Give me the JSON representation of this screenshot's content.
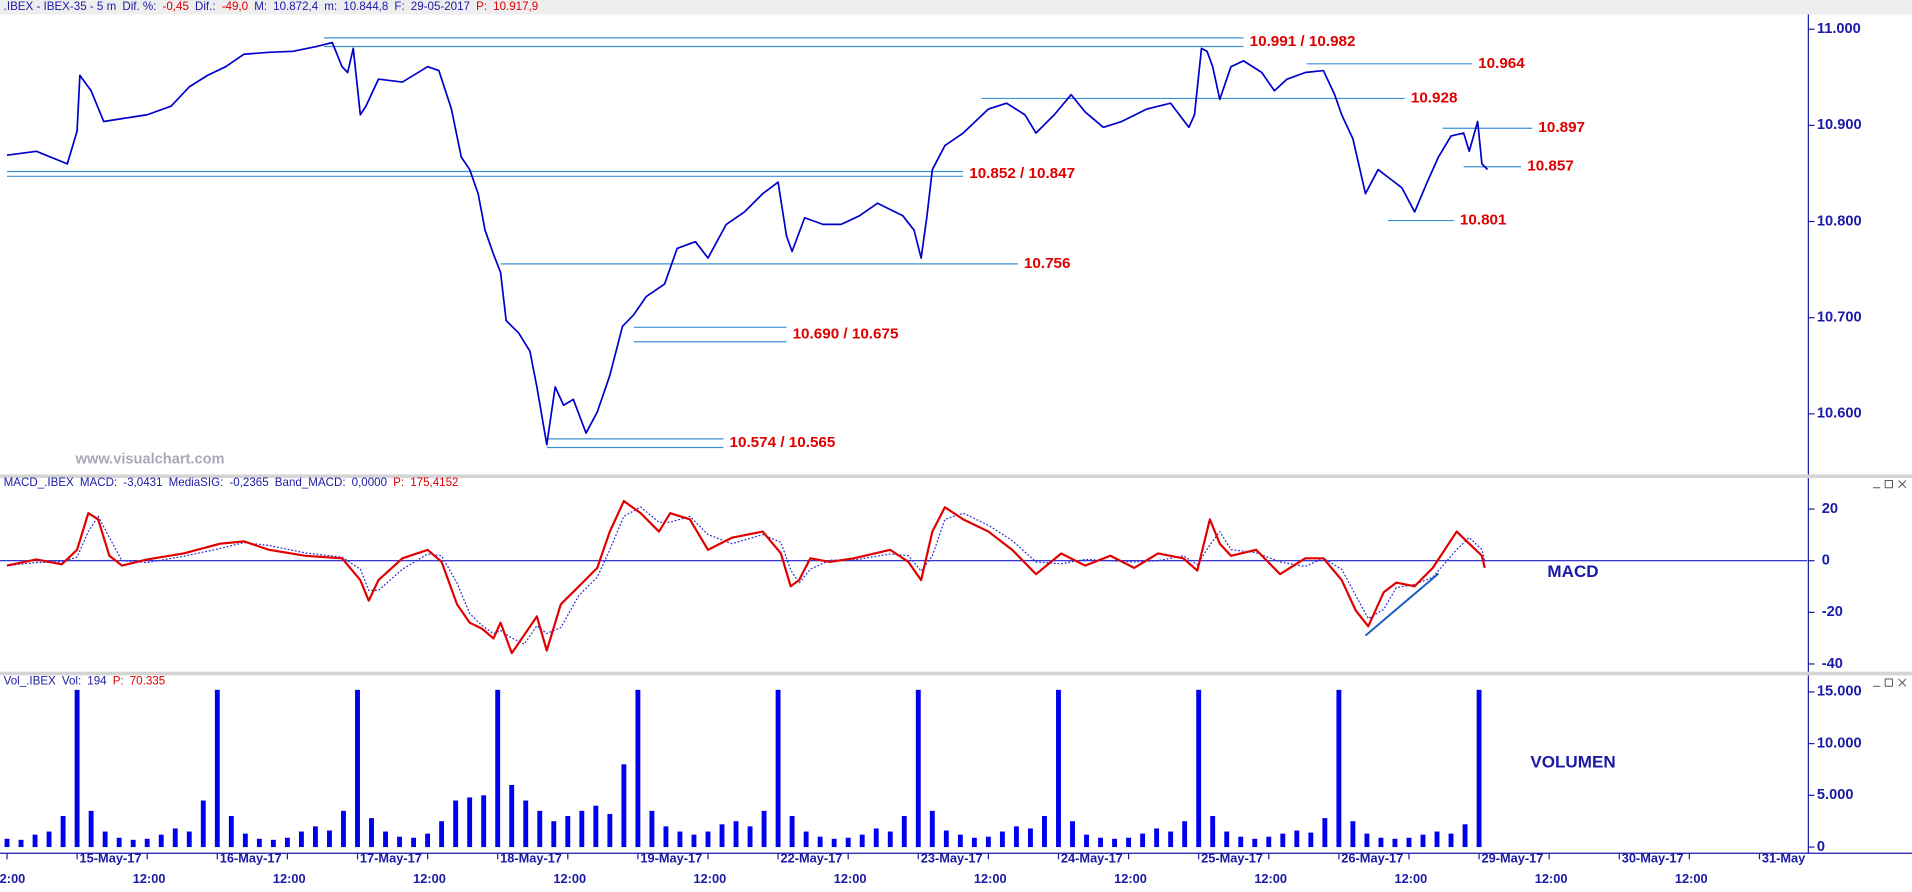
{
  "chart_data": [
    {
      "type": "line",
      "header": [
        {
          "text": ".IBEX - IBEX-35 - 5 m",
          "color": "#1a1aa6"
        },
        {
          "text": "Dif. %:",
          "color": "#1a1aa6"
        },
        {
          "text": "-0,45",
          "color": "#dd0000"
        },
        {
          "text": "Dif.:",
          "color": "#1a1aa6"
        },
        {
          "text": "-49,0",
          "color": "#dd0000"
        },
        {
          "text": "M:",
          "color": "#1a1aa6"
        },
        {
          "text": "10.872,4",
          "color": "#1a1aa6"
        },
        {
          "text": "m:",
          "color": "#1a1aa6"
        },
        {
          "text": "10.844,8",
          "color": "#1a1aa6"
        },
        {
          "text": "F:",
          "color": "#1a1aa6"
        },
        {
          "text": "29-05-2017",
          "color": "#1a1aa6"
        },
        {
          "text": "P:",
          "color": "#dd0000"
        },
        {
          "text": "10.917,9",
          "color": "#dd0000"
        }
      ],
      "watermark": "www.visualchart.com",
      "color": "#0000cc",
      "xlim": [
        -0.55,
        12.34
      ],
      "ylim": [
        10537,
        11014
      ],
      "yticks": [
        {
          "value": 10600,
          "label": "10.600"
        },
        {
          "value": 10700,
          "label": "10.700"
        },
        {
          "value": 10800,
          "label": "10.800"
        },
        {
          "value": 10900,
          "label": "10.900"
        },
        {
          "value": 11000,
          "label": "11.000"
        }
      ],
      "x": [
        -0.5,
        -0.29,
        -0.07,
        0,
        0.02,
        0.1,
        0.19,
        0.32,
        0.5,
        0.67,
        0.8,
        0.93,
        1.06,
        1.19,
        1.37,
        1.54,
        1.71,
        1.82,
        1.89,
        1.93,
        1.97,
        2.02,
        2.06,
        2.15,
        2.32,
        2.5,
        2.58,
        2.67,
        2.74,
        2.8,
        2.86,
        2.91,
        2.97,
        3.02,
        3.06,
        3.15,
        3.23,
        3.28,
        3.35,
        3.41,
        3.47,
        3.54,
        3.63,
        3.71,
        3.8,
        3.89,
        3.97,
        4.06,
        4.19,
        4.28,
        4.41,
        4.5,
        4.63,
        4.76,
        4.89,
        5,
        5.06,
        5.1,
        5.19,
        5.32,
        5.45,
        5.58,
        5.71,
        5.89,
        5.97,
        6.02,
        6.06,
        6.1,
        6.19,
        6.32,
        6.5,
        6.63,
        6.76,
        6.84,
        6.97,
        7.09,
        7.19,
        7.32,
        7.45,
        7.63,
        7.8,
        7.93,
        7.97,
        8.02,
        8.06,
        8.1,
        8.15,
        8.23,
        8.32,
        8.45,
        8.54,
        8.63,
        8.76,
        8.89,
        8.97,
        9.02,
        9.1,
        9.19,
        9.28,
        9.37,
        9.45,
        9.54,
        9.63,
        9.71,
        9.8,
        9.89,
        9.93,
        9.99,
        10.02,
        10.06
      ],
      "values": [
        10869,
        10873,
        10860,
        10894,
        10952,
        10936,
        10904,
        10907,
        10911,
        10920,
        10940,
        10952,
        10961,
        10974,
        10976,
        10977,
        10982,
        10986,
        10961,
        10955,
        10980,
        10911,
        10920,
        10948,
        10945,
        10961,
        10957,
        10917,
        10867,
        10854,
        10829,
        10791,
        10766,
        10747,
        10697,
        10684,
        10665,
        10628,
        10568,
        10628,
        10609,
        10615,
        10580,
        10602,
        10640,
        10691,
        10703,
        10722,
        10735,
        10772,
        10779,
        10762,
        10797,
        10810,
        10829,
        10841,
        10785,
        10769,
        10804,
        10797,
        10797,
        10806,
        10819,
        10806,
        10791,
        10762,
        10804,
        10854,
        10879,
        10892,
        10917,
        10923,
        10911,
        10892,
        10911,
        10932,
        10914,
        10898,
        10904,
        10917,
        10923,
        10898,
        10911,
        10980,
        10977,
        10961,
        10927,
        10961,
        10967,
        10955,
        10936,
        10948,
        10955,
        10957,
        10932,
        10911,
        10886,
        10829,
        10854,
        10844,
        10835,
        10810,
        10841,
        10867,
        10889,
        10892,
        10873,
        10904,
        10860,
        10854
      ],
      "level_color": "#3d8fd6",
      "levels": [
        {
          "label": "10.991 / 10.982",
          "values": [
            10991,
            10982
          ],
          "from": 1.76,
          "to": 8.32
        },
        {
          "label": "10.964",
          "values": [
            10964
          ],
          "from": 8.77,
          "to": 9.95
        },
        {
          "label": "10.928",
          "values": [
            10928
          ],
          "from": 6.45,
          "to": 9.47
        },
        {
          "label": "10.897",
          "values": [
            10897
          ],
          "from": 9.74,
          "to": 10.38
        },
        {
          "label": "10.852 / 10.847",
          "values": [
            10852,
            10847
          ],
          "from": -0.5,
          "to": 6.32
        },
        {
          "label": "10.857",
          "values": [
            10857
          ],
          "from": 9.89,
          "to": 10.3
        },
        {
          "label": "10.801",
          "values": [
            10801
          ],
          "from": 9.35,
          "to": 9.82
        },
        {
          "label": "10.756",
          "values": [
            10756
          ],
          "from": 3.02,
          "to": 6.71
        },
        {
          "label": "10.690 / 10.675",
          "values": [
            10690,
            10675
          ],
          "from": 3.97,
          "to": 5.06
        },
        {
          "label": "10.574 / 10.565",
          "values": [
            10574,
            10565
          ],
          "from": 3.35,
          "to": 4.61
        }
      ]
    },
    {
      "type": "line",
      "header": [
        {
          "text": "MACD_.IBEX",
          "color": "#1a1aa6"
        },
        {
          "text": "MACD:",
          "color": "#1a1aa6"
        },
        {
          "text": "-3,0431",
          "color": "#1a1aa6"
        },
        {
          "text": "MediaSIG:",
          "color": "#1a1aa6"
        },
        {
          "text": "-0,2365",
          "color": "#1a1aa6"
        },
        {
          "text": "Band_MACD:",
          "color": "#1a1aa6"
        },
        {
          "text": "0,0000",
          "color": "#1a1aa6"
        },
        {
          "text": "P:",
          "color": "#dd0000"
        },
        {
          "text": "175,4152",
          "color": "#dd0000"
        }
      ],
      "label": "MACD",
      "xlim": [
        -0.55,
        12.34
      ],
      "ylim": [
        -43,
        32
      ],
      "yticks": [
        -40,
        -20,
        0,
        20
      ],
      "band": 0,
      "band_color": "#1a1acc",
      "x": [
        -0.5,
        -0.29,
        -0.11,
        0,
        0.08,
        0.15,
        0.23,
        0.32,
        0.5,
        0.76,
        1.02,
        1.19,
        1.37,
        1.63,
        1.89,
        2.02,
        2.08,
        2.15,
        2.32,
        2.5,
        2.6,
        2.71,
        2.8,
        2.89,
        2.97,
        3.02,
        3.1,
        3.19,
        3.28,
        3.35,
        3.45,
        3.58,
        3.71,
        3.8,
        3.9,
        4.02,
        4.15,
        4.23,
        4.37,
        4.5,
        4.67,
        4.89,
        5.02,
        5.09,
        5.15,
        5.23,
        5.37,
        5.54,
        5.8,
        5.93,
        6.02,
        6.1,
        6.19,
        6.32,
        6.5,
        6.67,
        6.84,
        7.02,
        7.19,
        7.37,
        7.54,
        7.71,
        7.89,
        7.99,
        8.08,
        8.15,
        8.23,
        8.41,
        8.58,
        8.76,
        8.89,
        9.02,
        9.12,
        9.21,
        9.32,
        9.41,
        9.54,
        9.67,
        9.84,
        9.93,
        10.02,
        10.04
      ],
      "series": [
        {
          "color": "#e00000",
          "style": "solid",
          "values": [
            -1.9,
            0.5,
            -1.4,
            4.2,
            18.4,
            16,
            1.9,
            -1.9,
            0.5,
            2.8,
            6.6,
            7.5,
            4.2,
            1.9,
            0.9,
            -7.5,
            -15.5,
            -7.5,
            0.9,
            4.2,
            -0.5,
            -16.9,
            -24,
            -26.4,
            -30.1,
            -24,
            -35.8,
            -28.7,
            -21.6,
            -34.8,
            -16.9,
            -9.9,
            -2.8,
            11.3,
            23.1,
            18.4,
            11.3,
            18.4,
            16,
            4.2,
            8.9,
            11.3,
            2.8,
            -9.9,
            -7.5,
            0.9,
            -0.5,
            0.9,
            4.2,
            -0.5,
            -7.5,
            11.3,
            20.7,
            16,
            11.3,
            4.2,
            -5.2,
            2.8,
            -1.9,
            1.9,
            -2.8,
            2.8,
            0.9,
            -3.8,
            16,
            6.6,
            1.9,
            4.2,
            -5.2,
            0.9,
            0.9,
            -7.5,
            -19.3,
            -25.4,
            -12.2,
            -8.5,
            -9.9,
            -2.8,
            11.3,
            6.6,
            1.9,
            -2.8
          ]
        },
        {
          "color": "#2a2ad0",
          "style": "dotted",
          "values": [
            -1.9,
            -0.7,
            -0.5,
            1.4,
            11.3,
            17.2,
            9,
            0,
            -0.7,
            1.7,
            4.7,
            7,
            5.9,
            3,
            1.4,
            -3.3,
            -11.5,
            -11.5,
            -3.3,
            2.6,
            1.9,
            -8.7,
            -20.5,
            -25.2,
            -28.3,
            -27,
            -29.9,
            -32.3,
            -25.2,
            -28.2,
            -25.9,
            -13.4,
            -6.4,
            4.3,
            17.2,
            20.8,
            14.9,
            14.9,
            17.2,
            10.1,
            6.6,
            10.1,
            7.1,
            -3.6,
            -8.7,
            -3.3,
            0.2,
            0.2,
            2.6,
            1.9,
            -4,
            1.9,
            16,
            18.4,
            13.7,
            7.8,
            -0.5,
            -1.2,
            0.5,
            0,
            -0.5,
            0,
            1.9,
            -1.5,
            6.1,
            11.3,
            4.3,
            3.1,
            -0.5,
            -2.2,
            0.9,
            -3.3,
            -13.4,
            -22.4,
            -18.8,
            -10.4,
            -9.2,
            -6.4,
            4.3,
            9,
            4.3,
            -0.5
          ]
        }
      ],
      "trendline": {
        "x": [
          9.19,
          9.71
        ],
        "y": [
          -29,
          -5
        ],
        "color": "#1a5fc0"
      }
    },
    {
      "type": "bar",
      "header": [
        {
          "text": "Vol_.IBEX",
          "color": "#1a1aa6"
        },
        {
          "text": "Vol:",
          "color": "#1a1aa6"
        },
        {
          "text": "194",
          "color": "#1a1aa6"
        },
        {
          "text": "P:",
          "color": "#dd0000"
        },
        {
          "text": "70.335",
          "color": "#dd0000"
        }
      ],
      "label": "VOLUMEN",
      "color": "#0000ee",
      "xlim": [
        -0.55,
        12.34
      ],
      "ylim": [
        -600,
        16600
      ],
      "yticks": [
        0,
        {
          "value": 5000,
          "label": "5.000"
        },
        {
          "value": 10000,
          "label": "10.000"
        },
        {
          "value": 15000,
          "label": "15.000"
        }
      ],
      "xticks": [
        {
          "value": -0.5,
          "label": "2:00"
        },
        {
          "value": 0,
          "label": "15-May-17"
        },
        {
          "value": 0.5,
          "label": "12:00"
        },
        {
          "value": 1,
          "label": "16-May-17"
        },
        {
          "value": 1.5,
          "label": "12:00"
        },
        {
          "value": 2,
          "label": "17-May-17"
        },
        {
          "value": 2.5,
          "label": "12:00"
        },
        {
          "value": 3,
          "label": "18-May-17"
        },
        {
          "value": 3.5,
          "label": "12:00"
        },
        {
          "value": 4,
          "label": "19-May-17"
        },
        {
          "value": 4.5,
          "label": "12:00"
        },
        {
          "value": 5,
          "label": "22-May-17"
        },
        {
          "value": 5.5,
          "label": "12:00"
        },
        {
          "value": 6,
          "label": "23-May-17"
        },
        {
          "value": 6.5,
          "label": "12:00"
        },
        {
          "value": 7,
          "label": "24-May-17"
        },
        {
          "value": 7.5,
          "label": "12:00"
        },
        {
          "value": 8,
          "label": "25-May-17"
        },
        {
          "value": 8.5,
          "label": "12:00"
        },
        {
          "value": 9,
          "label": "26-May-17"
        },
        {
          "value": 9.5,
          "label": "12:00"
        },
        {
          "value": 10,
          "label": "29-May-17"
        },
        {
          "value": 10.5,
          "label": "12:00"
        },
        {
          "value": 11,
          "label": "30-May-17"
        },
        {
          "value": 11.5,
          "label": "12:00"
        },
        {
          "value": 12,
          "label": "31-May"
        }
      ],
      "x": [
        -0.5,
        -0.4,
        -0.3,
        -0.2,
        -0.1,
        0,
        0.1,
        0.2,
        0.3,
        0.4,
        0.5,
        0.6,
        0.7,
        0.8,
        0.9,
        1,
        1.1,
        1.2,
        1.3,
        1.4,
        1.5,
        1.6,
        1.7,
        1.8,
        1.9,
        2,
        2.1,
        2.2,
        2.3,
        2.4,
        2.5,
        2.6,
        2.7,
        2.8,
        2.9,
        3,
        3.1,
        3.2,
        3.3,
        3.4,
        3.5,
        3.6,
        3.7,
        3.8,
        3.9,
        4,
        4.1,
        4.2,
        4.3,
        4.4,
        4.5,
        4.6,
        4.7,
        4.8,
        4.9,
        5,
        5.1,
        5.2,
        5.3,
        5.4,
        5.5,
        5.6,
        5.7,
        5.8,
        5.9,
        6,
        6.1,
        6.2,
        6.3,
        6.4,
        6.5,
        6.6,
        6.7,
        6.8,
        6.9,
        7,
        7.1,
        7.2,
        7.3,
        7.4,
        7.5,
        7.6,
        7.7,
        7.8,
        7.9,
        8,
        8.1,
        8.2,
        8.3,
        8.4,
        8.5,
        8.6,
        8.7,
        8.8,
        8.9,
        9,
        9.1,
        9.2,
        9.3,
        9.4,
        9.5,
        9.6,
        9.7,
        9.8,
        9.9,
        10
      ],
      "values": [
        800,
        700,
        1200,
        1500,
        3000,
        15200,
        3500,
        1500,
        900,
        700,
        800,
        1200,
        1800,
        1500,
        4500,
        15200,
        3000,
        1300,
        800,
        700,
        900,
        1500,
        2000,
        1600,
        3500,
        15200,
        2800,
        1500,
        1000,
        900,
        1300,
        2500,
        4500,
        4800,
        5000,
        15200,
        6000,
        4500,
        3500,
        2500,
        3000,
        3500,
        4000,
        3200,
        8000,
        15200,
        3500,
        2000,
        1500,
        1200,
        1500,
        2200,
        2500,
        2000,
        3500,
        15200,
        3000,
        1500,
        1000,
        800,
        900,
        1200,
        1800,
        1500,
        3000,
        15200,
        3500,
        1600,
        1200,
        900,
        1000,
        1500,
        2000,
        1800,
        3000,
        15200,
        2500,
        1200,
        900,
        800,
        900,
        1300,
        1800,
        1500,
        2500,
        15200,
        3000,
        1500,
        1000,
        800,
        1000,
        1300,
        1600,
        1400,
        2800,
        15200,
        2500,
        1300,
        900,
        800,
        900,
        1200,
        1500,
        1300,
        2200,
        15200
      ]
    }
  ]
}
